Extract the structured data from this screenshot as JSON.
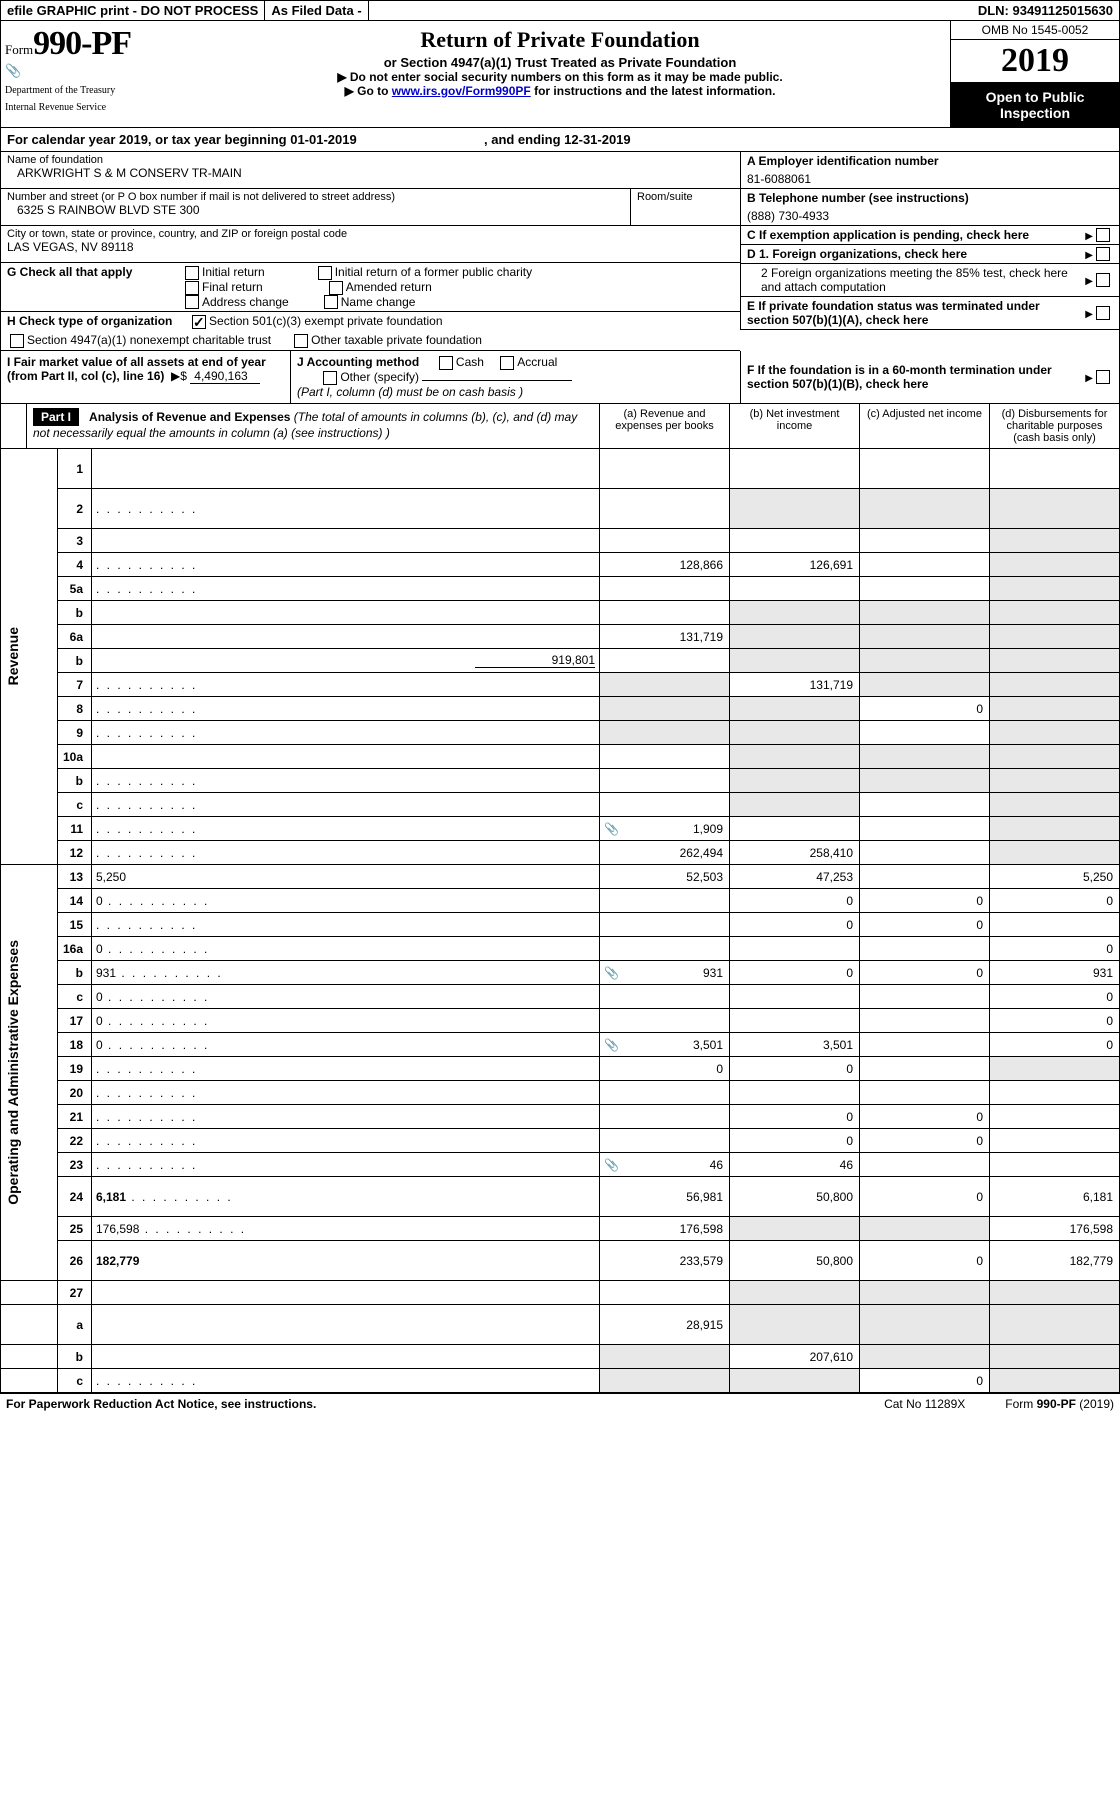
{
  "top": {
    "efile": "efile GRAPHIC print - DO NOT PROCESS",
    "asfiled": "As Filed Data -",
    "dln": "DLN: 93491125015630"
  },
  "header": {
    "form_prefix": "Form",
    "form_num": "990-PF",
    "dept1": "Department of the Treasury",
    "dept2": "Internal Revenue Service",
    "title": "Return of Private Foundation",
    "sub": "or Section 4947(a)(1) Trust Treated as Private Foundation",
    "note1": "▶ Do not enter social security numbers on this form as it may be made public.",
    "note2_pre": "▶ Go to ",
    "note2_link": "www.irs.gov/Form990PF",
    "note2_post": " for instructions and the latest information.",
    "omb": "OMB No  1545-0052",
    "year": "2019",
    "open": "Open to Public Inspection"
  },
  "calyear": {
    "text_a": "For calendar year 2019, or tax year beginning 01-01-2019",
    "text_b": ", and ending 12-31-2019"
  },
  "info": {
    "name_lbl": "Name of foundation",
    "name": "ARKWRIGHT S & M CONSERV TR-MAIN",
    "addr_lbl": "Number and street (or P O  box number if mail is not delivered to street address)",
    "room_lbl": "Room/suite",
    "addr": "6325 S RAINBOW BLVD STE 300",
    "city_lbl": "City or town, state or province, country, and ZIP or foreign postal code",
    "city": "LAS VEGAS, NV  89118",
    "ein_lbl": "A Employer identification number",
    "ein": "81-6088061",
    "tel_lbl": "B Telephone number (see instructions)",
    "tel": "(888) 730-4933",
    "c_lbl": "C If exemption application is pending, check here",
    "d1": "D 1. Foreign organizations, check here",
    "d2": "2  Foreign organizations meeting the 85% test, check here and attach computation",
    "e": "E  If private foundation status was terminated under section 507(b)(1)(A), check here",
    "f": "F  If the foundation is in a 60-month termination under section 507(b)(1)(B), check here"
  },
  "g": {
    "label": "G Check all that apply",
    "initial": "Initial return",
    "initial_former": "Initial return of a former public charity",
    "final": "Final return",
    "amended": "Amended return",
    "address": "Address change",
    "name": "Name change"
  },
  "h": {
    "label": "H Check type of organization",
    "s501": "Section 501(c)(3) exempt private foundation",
    "s4947": "Section 4947(a)(1) nonexempt charitable trust",
    "other": "Other taxable private foundation"
  },
  "i": {
    "label": "I Fair market value of all assets at end of year (from Part II, col  (c), line 16)",
    "amt_prefix": "▶$",
    "amt": "4,490,163"
  },
  "j": {
    "label": "J Accounting method",
    "cash": "Cash",
    "accrual": "Accrual",
    "other": "Other (specify)",
    "note": "(Part I, column (d) must be on cash basis )"
  },
  "part1": {
    "badge": "Part I",
    "title": "Analysis of Revenue and Expenses",
    "title_note": " (The total of amounts in columns (b), (c), and (d) may not necessarily equal the amounts in column (a) (see instructions) )",
    "col_a": "(a)  Revenue and expenses per books",
    "col_b": "(b)  Net investment income",
    "col_c": "(c)  Adjusted net income",
    "col_d": "(d)  Disbursements for charitable purposes (cash basis only)"
  },
  "side": {
    "revenue": "Revenue",
    "expenses": "Operating and Administrative Expenses"
  },
  "rows": [
    {
      "n": "1",
      "d": "",
      "a": "",
      "b": "",
      "c": "",
      "tall": true
    },
    {
      "n": "2",
      "d": "",
      "dots": true,
      "a": "",
      "b": "",
      "c": "",
      "tall": true,
      "bgrey": true,
      "cgrey": true,
      "dgrey": true
    },
    {
      "n": "3",
      "d": "",
      "a": "",
      "b": "",
      "c": "",
      "dgrey": true
    },
    {
      "n": "4",
      "d": "",
      "dots": true,
      "a": "128,866",
      "b": "126,691",
      "c": "",
      "dgrey": true
    },
    {
      "n": "5a",
      "d": "",
      "dots": true,
      "a": "",
      "b": "",
      "c": "",
      "dgrey": true
    },
    {
      "n": "b",
      "d": "",
      "a": "",
      "b": "",
      "c": "",
      "bgrey": true,
      "cgrey": true,
      "dgrey": true,
      "sub": true
    },
    {
      "n": "6a",
      "d": "",
      "a": "131,719",
      "b": "",
      "c": "",
      "bgrey": true,
      "cgrey": true,
      "dgrey": true
    },
    {
      "n": "b",
      "d": "",
      "a": "",
      "b": "",
      "c": "",
      "sub": true,
      "bgrey": true,
      "cgrey": true,
      "dgrey": true,
      "inline_val": "919,801"
    },
    {
      "n": "7",
      "d": "",
      "dots": true,
      "a": "",
      "b": "131,719",
      "c": "",
      "agrey": true,
      "cgrey": true,
      "dgrey": true
    },
    {
      "n": "8",
      "d": "",
      "dots": true,
      "a": "",
      "b": "",
      "c": "0",
      "agrey": true,
      "bgrey": true,
      "dgrey": true
    },
    {
      "n": "9",
      "d": "",
      "dots": true,
      "a": "",
      "b": "",
      "c": "",
      "agrey": true,
      "bgrey": true,
      "dgrey": true
    },
    {
      "n": "10a",
      "d": "",
      "a": "",
      "b": "",
      "c": "",
      "bgrey": true,
      "cgrey": true,
      "dgrey": true,
      "sub": true
    },
    {
      "n": "b",
      "d": "",
      "dots": true,
      "a": "",
      "b": "",
      "c": "",
      "sub": true,
      "bgrey": true,
      "cgrey": true,
      "dgrey": true
    },
    {
      "n": "c",
      "d": "",
      "dots": true,
      "a": "",
      "b": "",
      "c": "",
      "sub": true,
      "bgrey": true,
      "dgrey": true
    },
    {
      "n": "11",
      "d": "",
      "dots": true,
      "a": "1,909",
      "b": "",
      "c": "",
      "attach": true,
      "dgrey": true
    },
    {
      "n": "12",
      "d": "",
      "dots": true,
      "a": "262,494",
      "b": "258,410",
      "c": "",
      "bold": true,
      "dgrey": true
    }
  ],
  "exp_rows": [
    {
      "n": "13",
      "d": "5,250",
      "a": "52,503",
      "b": "47,253",
      "c": ""
    },
    {
      "n": "14",
      "d": "0",
      "dots": true,
      "a": "",
      "b": "0",
      "c": "0"
    },
    {
      "n": "15",
      "d": "",
      "dots": true,
      "a": "",
      "b": "0",
      "c": "0"
    },
    {
      "n": "16a",
      "d": "0",
      "dots": true,
      "a": "",
      "b": "",
      "c": ""
    },
    {
      "n": "b",
      "d": "931",
      "dots": true,
      "a": "931",
      "b": "0",
      "c": "0",
      "attach": true,
      "sub": true
    },
    {
      "n": "c",
      "d": "0",
      "dots": true,
      "a": "",
      "b": "",
      "c": "",
      "sub": true
    },
    {
      "n": "17",
      "d": "0",
      "dots": true,
      "a": "",
      "b": "",
      "c": ""
    },
    {
      "n": "18",
      "d": "0",
      "dots": true,
      "a": "3,501",
      "b": "3,501",
      "c": "",
      "attach": true
    },
    {
      "n": "19",
      "d": "",
      "dots": true,
      "a": "0",
      "b": "0",
      "c": "",
      "dgrey": true
    },
    {
      "n": "20",
      "d": "",
      "dots": true,
      "a": "",
      "b": "",
      "c": ""
    },
    {
      "n": "21",
      "d": "",
      "dots": true,
      "a": "",
      "b": "0",
      "c": "0"
    },
    {
      "n": "22",
      "d": "",
      "dots": true,
      "a": "",
      "b": "0",
      "c": "0"
    },
    {
      "n": "23",
      "d": "",
      "dots": true,
      "a": "46",
      "b": "46",
      "c": "",
      "attach": true
    },
    {
      "n": "24",
      "d": "6,181",
      "dots": true,
      "a": "56,981",
      "b": "50,800",
      "c": "0",
      "bold": true,
      "tall": true
    },
    {
      "n": "25",
      "d": "176,598",
      "dots": true,
      "a": "176,598",
      "b": "",
      "c": "",
      "bgrey": true,
      "cgrey": true
    },
    {
      "n": "26",
      "d": "182,779",
      "a": "233,579",
      "b": "50,800",
      "c": "0",
      "bold": true,
      "tall": true
    }
  ],
  "end_rows": [
    {
      "n": "27",
      "d": "",
      "a": "",
      "b": "",
      "c": "",
      "bgrey": true,
      "cgrey": true,
      "dgrey": true
    },
    {
      "n": "a",
      "d": "",
      "a": "28,915",
      "b": "",
      "c": "",
      "bold": true,
      "sub": true,
      "bgrey": true,
      "cgrey": true,
      "dgrey": true,
      "tall": true
    },
    {
      "n": "b",
      "d": "",
      "a": "",
      "b": "207,610",
      "c": "",
      "bold": true,
      "sub": true,
      "agrey": true,
      "cgrey": true,
      "dgrey": true
    },
    {
      "n": "c",
      "d": "",
      "dots": true,
      "a": "",
      "b": "",
      "c": "0",
      "bold": true,
      "sub": true,
      "agrey": true,
      "bgrey": true,
      "dgrey": true
    }
  ],
  "footer": {
    "left": "For Paperwork Reduction Act Notice, see instructions.",
    "mid": "Cat  No  11289X",
    "right_a": "Form ",
    "right_b": "990-PF",
    "right_c": " (2019)"
  }
}
